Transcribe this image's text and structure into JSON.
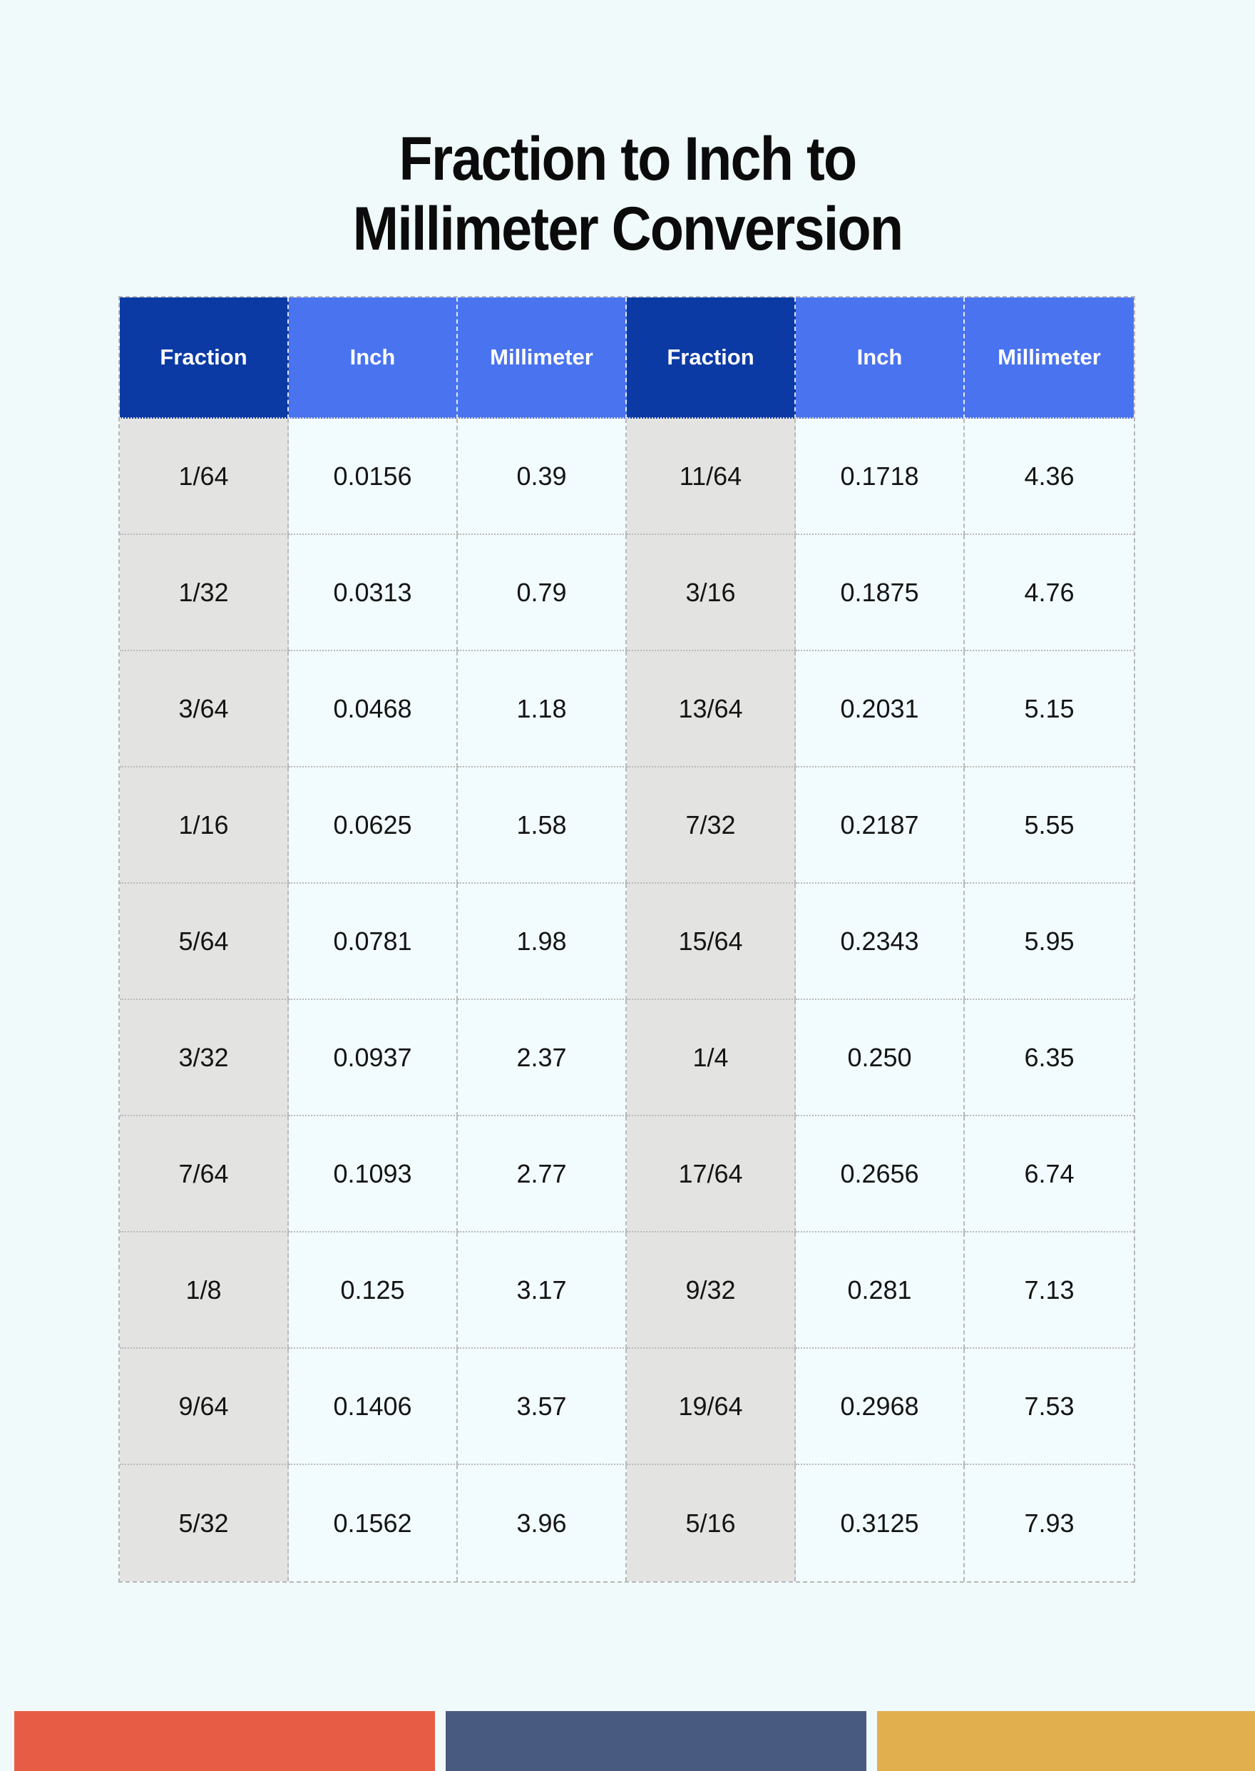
{
  "page": {
    "title_line1": "Fraction to Inch to",
    "title_line2": "Millimeter Conversion"
  },
  "table": {
    "headers": [
      "Fraction",
      "Inch",
      "Millimeter",
      "Fraction",
      "Inch",
      "Millimeter"
    ],
    "rows": [
      [
        "1/64",
        "0.0156",
        "0.39",
        "11/64",
        "0.1718",
        "4.36"
      ],
      [
        "1/32",
        "0.0313",
        "0.79",
        "3/16",
        "0.1875",
        "4.76"
      ],
      [
        "3/64",
        "0.0468",
        "1.18",
        "13/64",
        "0.2031",
        "5.15"
      ],
      [
        "1/16",
        "0.0625",
        "1.58",
        "7/32",
        "0.2187",
        "5.55"
      ],
      [
        "5/64",
        "0.0781",
        "1.98",
        "15/64",
        "0.2343",
        "5.95"
      ],
      [
        "3/32",
        "0.0937",
        "2.37",
        "1/4",
        "0.250",
        "6.35"
      ],
      [
        "7/64",
        "0.1093",
        "2.77",
        "17/64",
        "0.2656",
        "6.74"
      ],
      [
        "1/8",
        "0.125",
        "3.17",
        "9/32",
        "0.281",
        "7.13"
      ],
      [
        "9/64",
        "0.1406",
        "3.57",
        "19/64",
        "0.2968",
        "7.53"
      ],
      [
        "5/32",
        "0.1562",
        "3.96",
        "5/16",
        "0.3125",
        "7.93"
      ]
    ]
  },
  "colors": {
    "page_bg": "#F0FAFB",
    "header_primary": "#0B3AA5",
    "header_secondary": "#4A73F0",
    "fraction_col_bg": "#E3E3E2",
    "value_col_bg": "#F2FBFD",
    "footer_red": "#E65C45",
    "footer_navy": "#485A80",
    "footer_gold": "#E1AF4D"
  }
}
